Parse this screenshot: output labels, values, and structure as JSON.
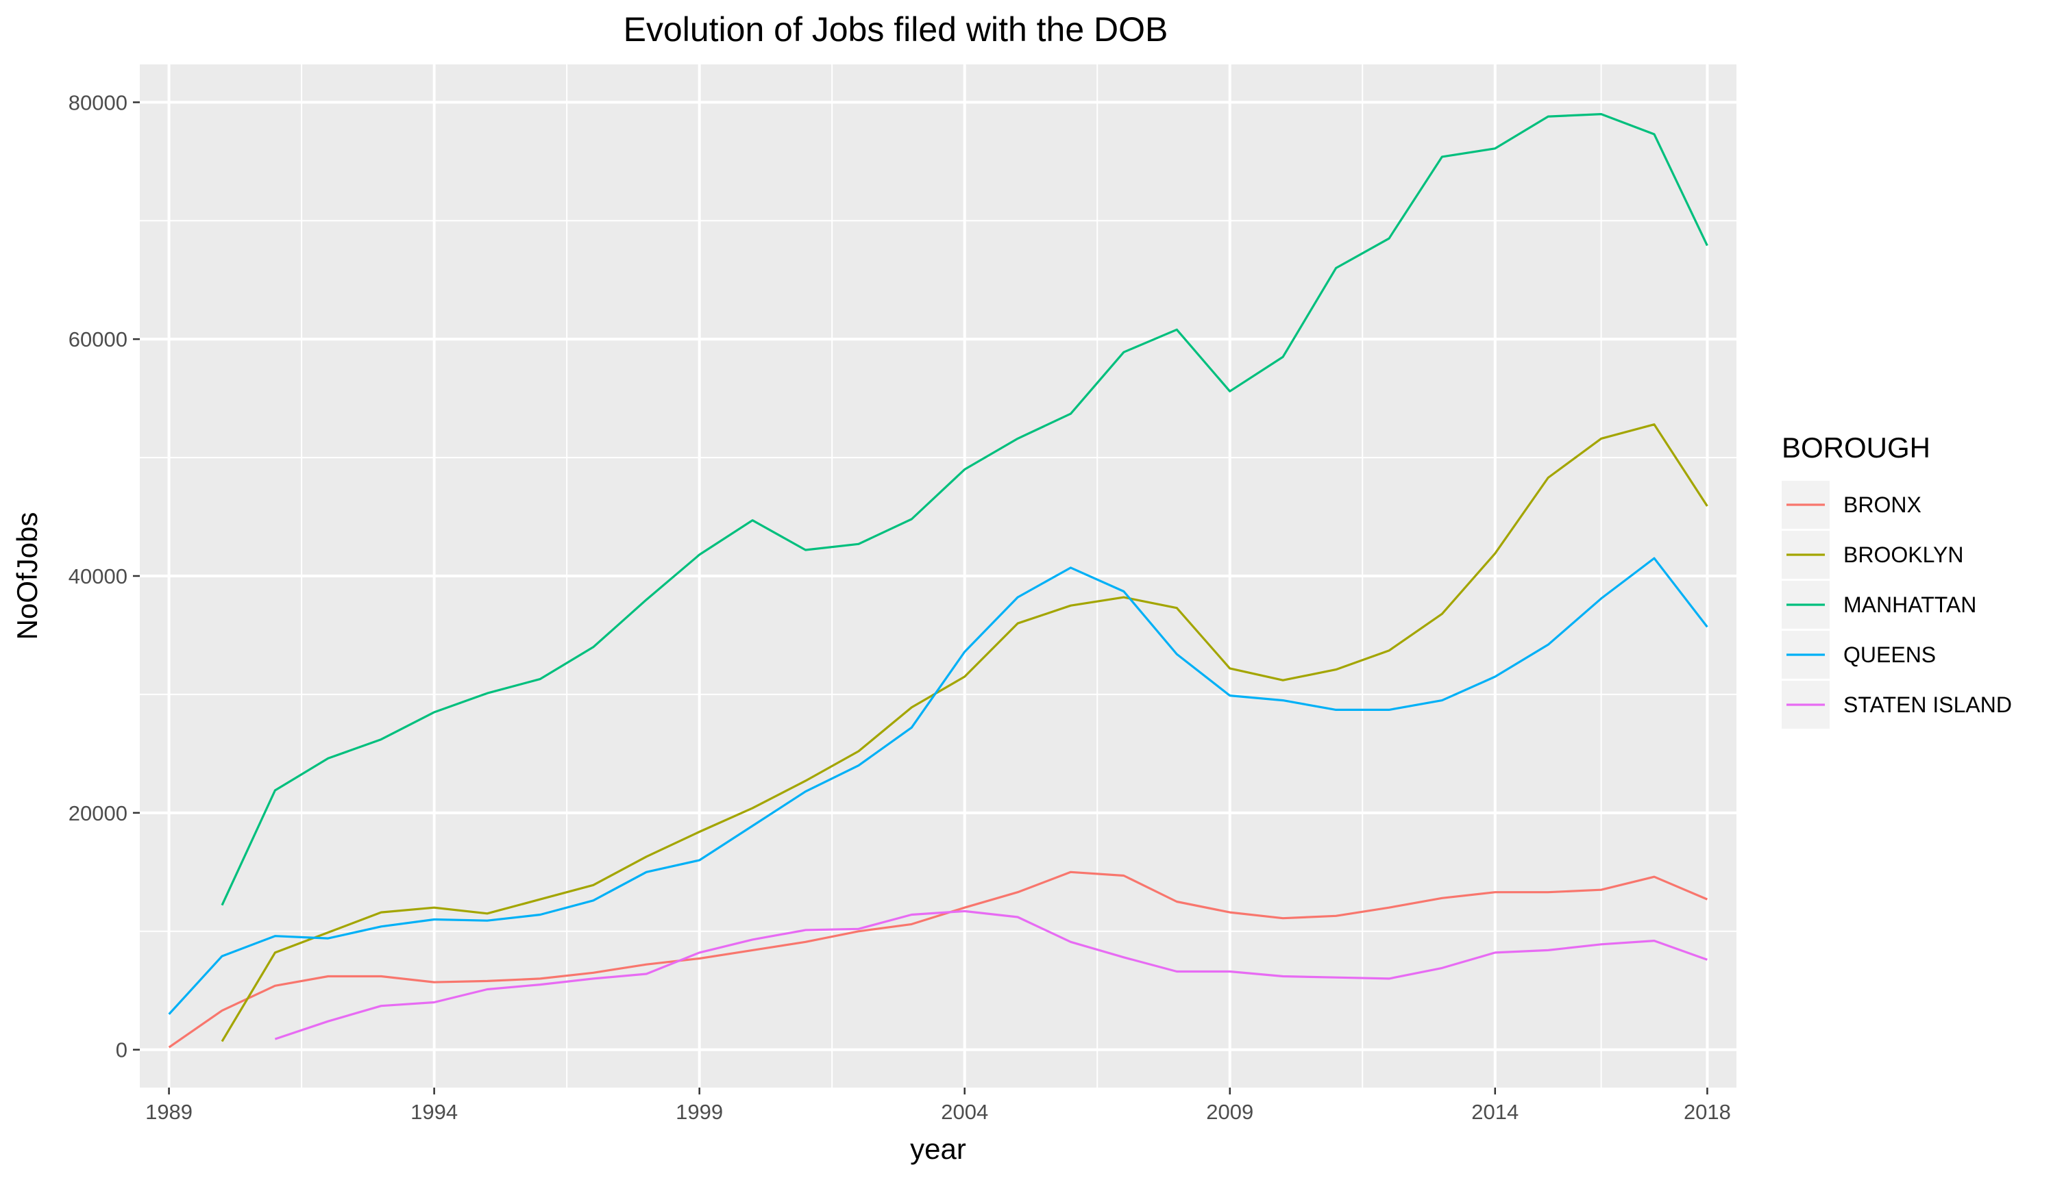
{
  "chart_data": {
    "type": "line",
    "title": "Evolution of Jobs filed with the DOB",
    "xlabel": "year",
    "ylabel": "NoOfJobs",
    "xlim": [
      1988.45,
      2018.55
    ],
    "ylim": [
      -3200,
      83200
    ],
    "x_ticks": [
      1989,
      1994,
      1999,
      2004,
      2009,
      2014,
      2018
    ],
    "y_ticks": [
      0,
      20000,
      40000,
      60000,
      80000
    ],
    "y_tick_labels": [
      "0",
      "20000",
      "40000",
      "60000",
      "80000"
    ],
    "grid": true,
    "legend": {
      "title": "BOROUGH",
      "position": "right"
    },
    "series": [
      {
        "name": "BRONX",
        "color": "#F8766D",
        "x": [
          1989,
          1990,
          1991,
          1992,
          1993,
          1994,
          1995,
          1996,
          1997,
          1998,
          1999,
          2000,
          2001,
          2002,
          2003,
          2004,
          2005,
          2006,
          2007,
          2008,
          2009,
          2010,
          2011,
          2012,
          2013,
          2014,
          2015,
          2016,
          2017,
          2018
        ],
        "values": [
          200,
          3300,
          5400,
          6200,
          6200,
          5700,
          5800,
          6000,
          6500,
          7200,
          7700,
          8400,
          9100,
          10000,
          10600,
          12000,
          13300,
          15000,
          14700,
          12500,
          11600,
          11100,
          11300,
          12000,
          12800,
          13300,
          13300,
          13500,
          14600,
          12700
        ]
      },
      {
        "name": "BROOKLYN",
        "color": "#A3A500",
        "x": [
          1990,
          1991,
          1992,
          1993,
          1994,
          1995,
          1996,
          1997,
          1998,
          1999,
          2000,
          2001,
          2002,
          2003,
          2004,
          2005,
          2006,
          2007,
          2008,
          2009,
          2010,
          2011,
          2012,
          2013,
          2014,
          2015,
          2016,
          2017,
          2018
        ],
        "values": [
          700,
          8200,
          9900,
          11600,
          12000,
          11500,
          12700,
          13900,
          16300,
          18400,
          20400,
          22700,
          25200,
          28900,
          31500,
          36000,
          37500,
          38200,
          37300,
          32200,
          31200,
          32100,
          33700,
          36800,
          41900,
          48300,
          51600,
          52800,
          45900
        ]
      },
      {
        "name": "MANHATTAN",
        "color": "#00BF7D",
        "x": [
          1990,
          1991,
          1992,
          1993,
          1994,
          1995,
          1996,
          1997,
          1998,
          1999,
          2000,
          2001,
          2002,
          2003,
          2004,
          2005,
          2006,
          2007,
          2008,
          2009,
          2010,
          2011,
          2012,
          2013,
          2014,
          2015,
          2016,
          2017,
          2018
        ],
        "values": [
          12200,
          21900,
          24600,
          26200,
          28500,
          30100,
          31300,
          34000,
          38000,
          41800,
          44700,
          42200,
          42700,
          44800,
          49000,
          51600,
          53700,
          58900,
          60800,
          55600,
          58500,
          66000,
          68500,
          75400,
          76100,
          78800,
          79000,
          77300,
          67900
        ]
      },
      {
        "name": "QUEENS",
        "color": "#00B0F6",
        "x": [
          1989,
          1990,
          1991,
          1992,
          1993,
          1994,
          1995,
          1996,
          1997,
          1998,
          1999,
          2000,
          2001,
          2002,
          2003,
          2004,
          2005,
          2006,
          2007,
          2008,
          2009,
          2010,
          2011,
          2012,
          2013,
          2014,
          2015,
          2016,
          2017,
          2018
        ],
        "values": [
          3000,
          7900,
          9600,
          9400,
          10400,
          11000,
          10900,
          11400,
          12600,
          15000,
          16000,
          18900,
          21800,
          24000,
          27200,
          33600,
          38200,
          40700,
          38700,
          33400,
          29900,
          29500,
          28700,
          28700,
          29500,
          31500,
          34200,
          38100,
          41500,
          35700
        ]
      },
      {
        "name": "STATEN ISLAND",
        "color": "#E76BF3",
        "x": [
          1991,
          1992,
          1993,
          1994,
          1995,
          1996,
          1997,
          1998,
          1999,
          2000,
          2001,
          2002,
          2003,
          2004,
          2005,
          2006,
          2007,
          2008,
          2009,
          2010,
          2011,
          2012,
          2013,
          2014,
          2015,
          2016,
          2017,
          2018
        ],
        "values": [
          900,
          2400,
          3700,
          4000,
          5100,
          5500,
          6000,
          6400,
          8200,
          9300,
          10100,
          10200,
          11400,
          11700,
          11200,
          9100,
          7800,
          6600,
          6600,
          6200,
          6100,
          6000,
          6900,
          8200,
          8400,
          8900,
          9200,
          7600
        ]
      }
    ]
  }
}
